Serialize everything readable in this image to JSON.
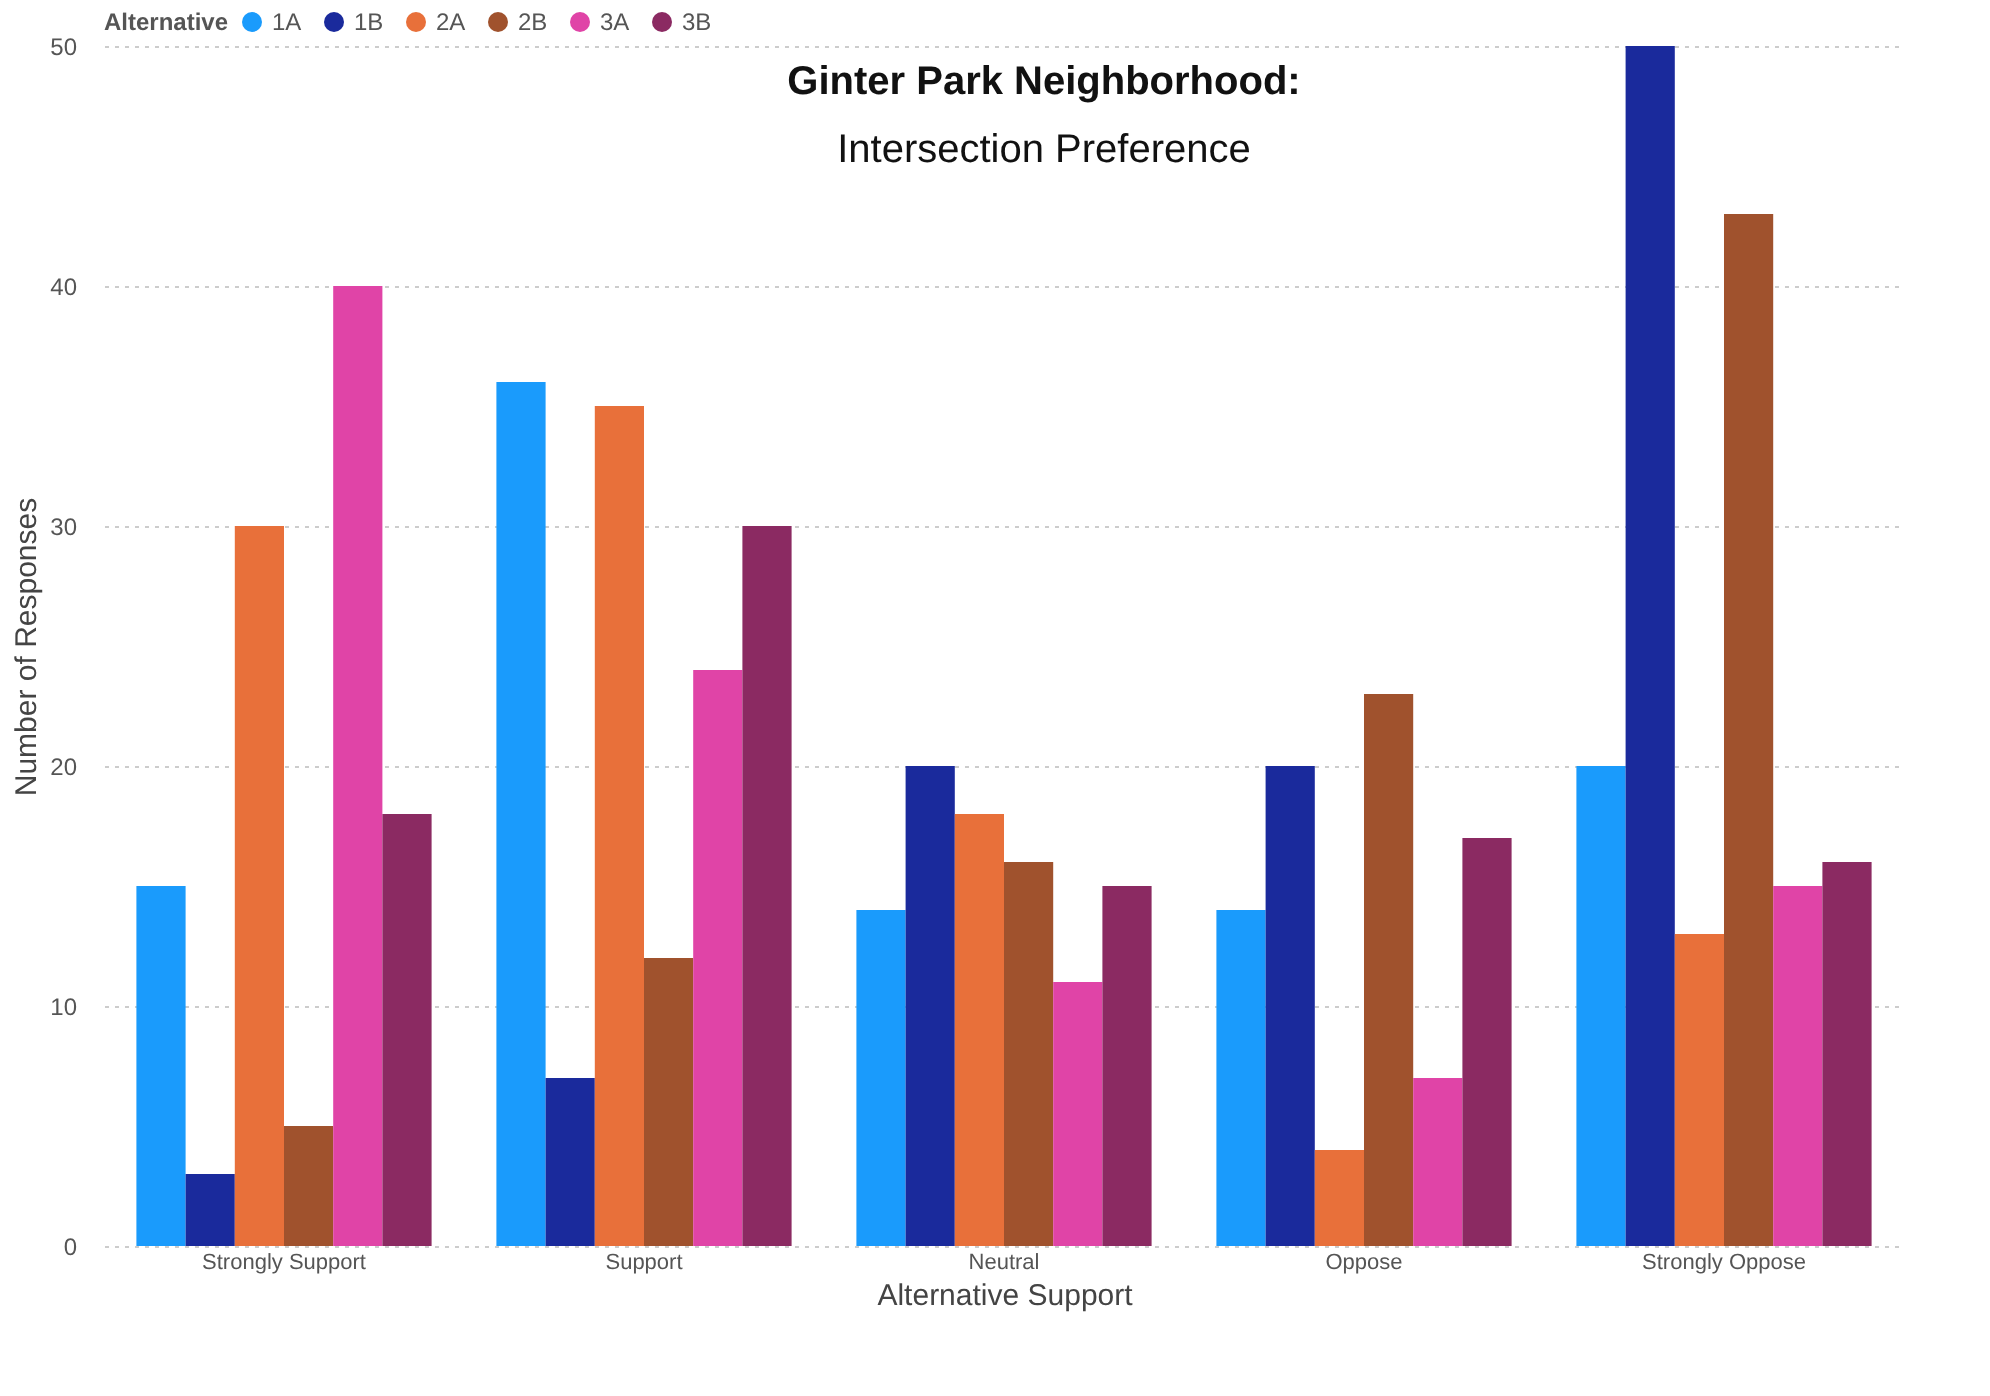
{
  "chart_data": {
    "type": "bar",
    "title": "Ginter Park Neighborhood:",
    "subtitle": "Intersection Preference",
    "xlabel": "Alternative Support",
    "ylabel": "Number of Responses",
    "legend_title": "Alternative",
    "categories": [
      "Strongly Support",
      "Support",
      "Neutral",
      "Oppose",
      "Strongly Oppose"
    ],
    "series": [
      {
        "name": "1A",
        "color": "#1a9bfc",
        "values": [
          15,
          36,
          14,
          14,
          20
        ]
      },
      {
        "name": "1B",
        "color": "#1a2a9c",
        "values": [
          3,
          7,
          20,
          20,
          50
        ]
      },
      {
        "name": "2A",
        "color": "#e8703a",
        "values": [
          30,
          35,
          18,
          4,
          13
        ]
      },
      {
        "name": "2B",
        "color": "#a0522d",
        "values": [
          5,
          12,
          16,
          23,
          43
        ]
      },
      {
        "name": "3A",
        "color": "#e044a7",
        "values": [
          40,
          24,
          11,
          7,
          15
        ]
      },
      {
        "name": "3B",
        "color": "#8b2a62",
        "values": [
          18,
          30,
          15,
          17,
          16
        ]
      }
    ],
    "ylim": [
      0,
      50
    ],
    "yticks": [
      0,
      10,
      20,
      30,
      40,
      50
    ],
    "grid": "y",
    "legend": "top left"
  }
}
